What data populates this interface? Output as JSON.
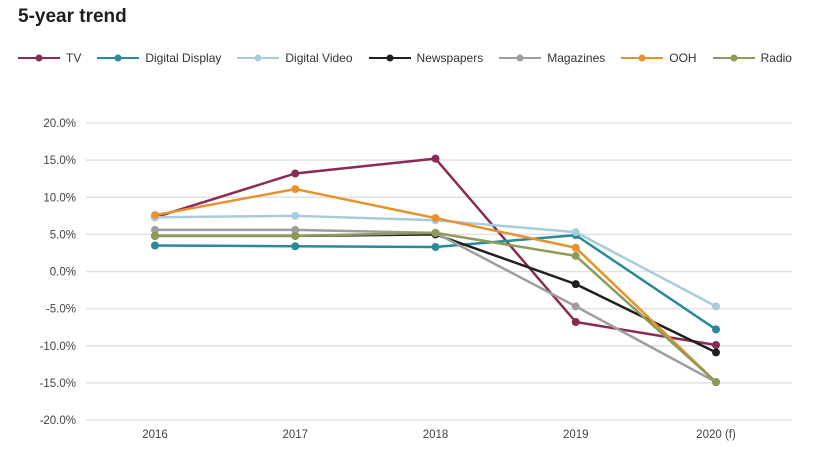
{
  "chart_data": {
    "type": "line",
    "title": "5-year trend",
    "categories": [
      "2016",
      "2017",
      "2018",
      "2019",
      "2020 (f)"
    ],
    "y_ticks": [
      "20.0%",
      "15.0%",
      "10.0%",
      "5.0%",
      "0.0%",
      "-5.0%",
      "-10.0%",
      "-15.0%",
      "-20.0%"
    ],
    "ylim": [
      -20,
      20
    ],
    "grid": true,
    "legend_position": "top",
    "series": [
      {
        "name": "TV",
        "color": "#8b2a55",
        "values": [
          7.3,
          13.2,
          15.2,
          -6.8,
          -9.9
        ]
      },
      {
        "name": "Digital Display",
        "color": "#2a8a9b",
        "values": [
          3.5,
          3.4,
          3.3,
          4.9,
          -7.8
        ]
      },
      {
        "name": "Digital Video",
        "color": "#a6cdd9",
        "values": [
          7.3,
          7.5,
          6.9,
          5.3,
          -4.7
        ]
      },
      {
        "name": "Newspapers",
        "color": "#1f1f1f",
        "values": [
          4.8,
          4.8,
          5.0,
          -1.7,
          -10.9
        ]
      },
      {
        "name": "Magazines",
        "color": "#9e9e9e",
        "values": [
          5.6,
          5.6,
          5.2,
          -4.7,
          -14.9
        ]
      },
      {
        "name": "OOH",
        "color": "#e8912d",
        "values": [
          7.6,
          11.1,
          7.2,
          3.2,
          -14.9
        ]
      },
      {
        "name": "Radio",
        "color": "#8e9a5a",
        "values": [
          4.8,
          4.8,
          5.2,
          2.1,
          -14.9
        ]
      }
    ]
  }
}
